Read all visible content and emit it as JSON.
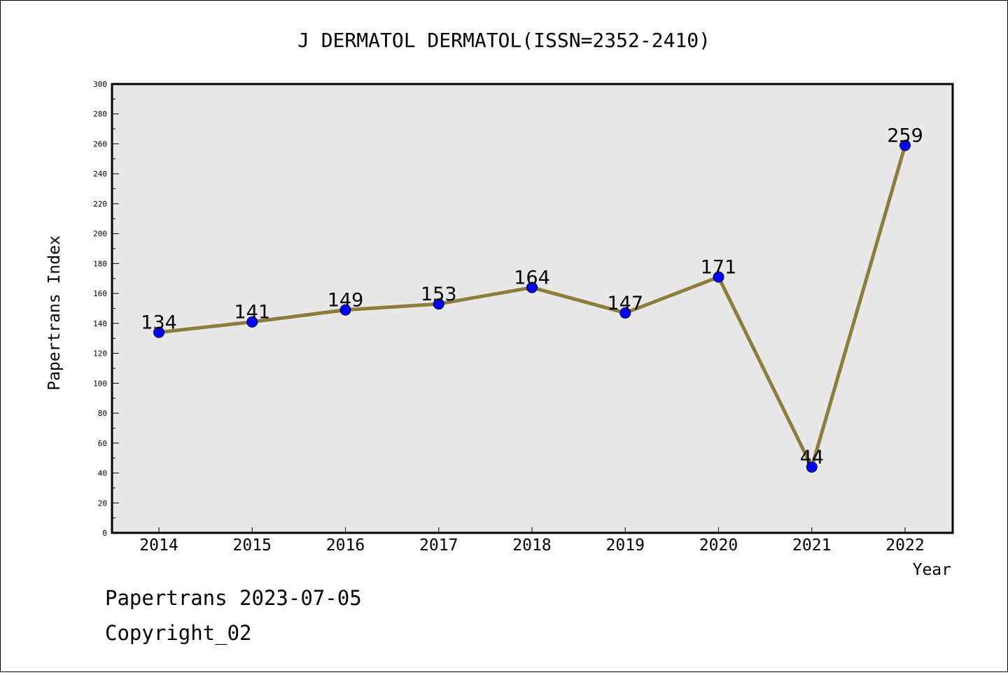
{
  "chart_data": {
    "type": "line",
    "title": "J DERMATOL DERMATOL(ISSN=2352-2410)",
    "xlabel": "Year",
    "ylabel": "Papertrans Index",
    "x": [
      "2014",
      "2015",
      "2016",
      "2017",
      "2018",
      "2019",
      "2020",
      "2021",
      "2022"
    ],
    "series": [
      {
        "values": [
          134,
          141,
          149,
          153,
          164,
          147,
          171,
          44,
          259
        ]
      }
    ],
    "data_labels": [
      "134",
      "141",
      "149",
      "153",
      "164",
      "147",
      "171",
      "44",
      "259"
    ],
    "ylim": [
      0,
      300
    ],
    "yticks": [
      "0",
      "20",
      "40",
      "60",
      "80",
      "100",
      "120",
      "140",
      "160",
      "180",
      "200",
      "220",
      "240",
      "260",
      "280",
      "300"
    ],
    "ytick_values": [
      0,
      20,
      40,
      60,
      80,
      100,
      120,
      140,
      160,
      180,
      200,
      220,
      240,
      260,
      280,
      300
    ],
    "grid": false,
    "line_color": "#8c7d3c",
    "marker_color": "#0000ff",
    "plot_background": "#e8e8e8"
  },
  "footer": {
    "source": "Papertrans 2023-07-05",
    "copyright": "Copyright_02"
  }
}
